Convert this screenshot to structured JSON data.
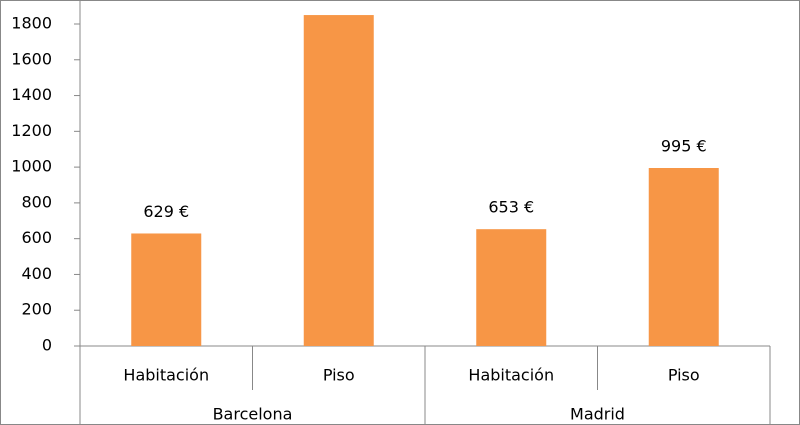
{
  "chart_data": {
    "type": "bar",
    "categories": [
      "Habitación",
      "Piso",
      "Habitación",
      "Piso"
    ],
    "groups": [
      "Barcelona",
      "Madrid"
    ],
    "values": [
      629,
      1850,
      653,
      995
    ],
    "value_labels": [
      "629 €",
      null,
      "653 €",
      "995 €"
    ],
    "color": "#f79646",
    "ylim": [
      0,
      1800
    ],
    "yticks": [
      0,
      200,
      400,
      600,
      800,
      1000,
      1200,
      1400,
      1600,
      1800
    ],
    "grid": false
  }
}
